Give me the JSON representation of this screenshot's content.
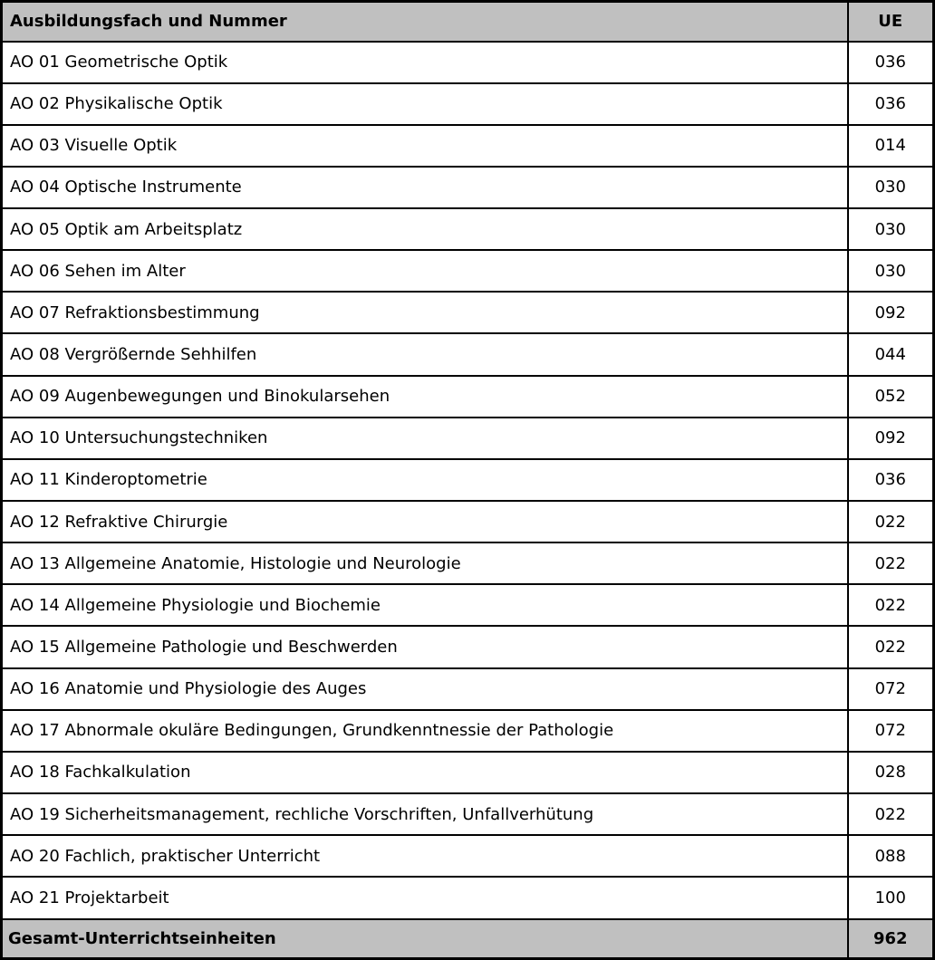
{
  "colors": {
    "header_bg": "#c0c0c0",
    "row_bg": "#ffffff",
    "border": "#000000",
    "text": "#000000"
  },
  "table": {
    "header": {
      "subject": "Ausbildungsfach und Nummer",
      "ue": "UE"
    },
    "rows": [
      {
        "subject": "AO 01 Geometrische Optik",
        "ue": "036"
      },
      {
        "subject": "AO 02 Physikalische Optik",
        "ue": "036"
      },
      {
        "subject": "AO 03 Visuelle Optik",
        "ue": "014"
      },
      {
        "subject": "AO 04 Optische Instrumente",
        "ue": "030"
      },
      {
        "subject": "AO 05 Optik am Arbeitsplatz",
        "ue": "030"
      },
      {
        "subject": "AO 06 Sehen im Alter",
        "ue": "030"
      },
      {
        "subject": "AO 07 Refraktionsbestimmung",
        "ue": "092"
      },
      {
        "subject": "AO 08 Vergrößernde Sehhilfen",
        "ue": "044"
      },
      {
        "subject": "AO 09 Augenbewegungen und Binokularsehen",
        "ue": "052"
      },
      {
        "subject": "AO 10 Untersuchungstechniken",
        "ue": "092"
      },
      {
        "subject": "AO 11 Kinderoptometrie",
        "ue": "036"
      },
      {
        "subject": "AO 12 Refraktive Chirurgie",
        "ue": "022"
      },
      {
        "subject": "AO 13 Allgemeine Anatomie, Histologie und Neurologie",
        "ue": "022"
      },
      {
        "subject": "AO 14 Allgemeine Physiologie und Biochemie",
        "ue": "022"
      },
      {
        "subject": "AO 15 Allgemeine Pathologie und Beschwerden",
        "ue": "022"
      },
      {
        "subject": "AO 16 Anatomie und Physiologie des Auges",
        "ue": "072"
      },
      {
        "subject": "AO 17 Abnormale okuläre Bedingungen, Grundkenntnessie der Pathologie",
        "ue": "072"
      },
      {
        "subject": "AO 18 Fachkalkulation",
        "ue": "028"
      },
      {
        "subject": "AO 19 Sicherheitsmanagement, rechliche Vorschriften, Unfallverhütung",
        "ue": "022"
      },
      {
        "subject": "AO 20 Fachlich, praktischer Unterricht",
        "ue": "088"
      },
      {
        "subject": "AO 21 Projektarbeit",
        "ue": "100"
      }
    ],
    "footer": {
      "subject": "Gesamt-Unterrichtseinheiten",
      "ue": "962"
    }
  }
}
